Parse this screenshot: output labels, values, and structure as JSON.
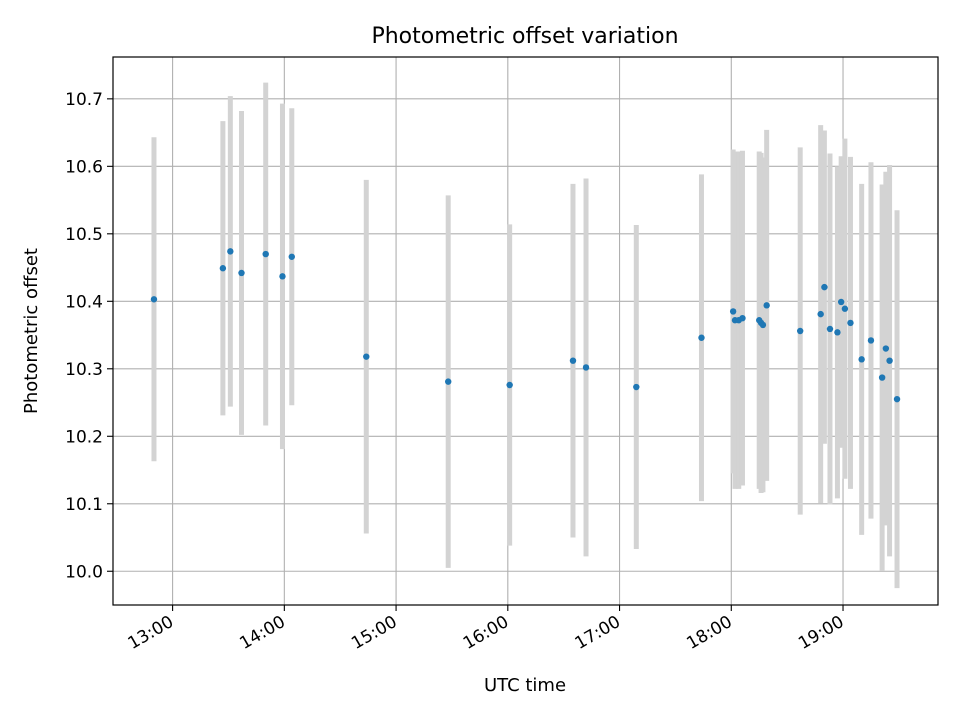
{
  "chart_data": {
    "type": "scatter",
    "title": "Photometric offset variation",
    "xlabel": "UTC time",
    "ylabel": "Photometric offset",
    "xlim": [
      "12:28",
      "19:51"
    ],
    "ylim": [
      9.95,
      10.762
    ],
    "x_ticks": [
      "13:00",
      "14:00",
      "15:00",
      "16:00",
      "17:00",
      "18:00",
      "19:00"
    ],
    "y_ticks": [
      "10.0",
      "10.1",
      "10.2",
      "10.3",
      "10.4",
      "10.5",
      "10.6",
      "10.7"
    ],
    "grid": true,
    "error_bars": "symmetric, light grey",
    "colors": {
      "points": "#1f77b4",
      "error_bars": "#d3d3d3",
      "grid": "#b0b0b0"
    },
    "points": [
      {
        "x": "12:50",
        "y": 10.403,
        "yerr": 0.24
      },
      {
        "x": "13:27",
        "y": 10.449,
        "yerr": 0.218
      },
      {
        "x": "13:31",
        "y": 10.474,
        "yerr": 0.23
      },
      {
        "x": "13:37",
        "y": 10.442,
        "yerr": 0.24
      },
      {
        "x": "13:50",
        "y": 10.47,
        "yerr": 0.254
      },
      {
        "x": "13:59",
        "y": 10.437,
        "yerr": 0.256
      },
      {
        "x": "14:04",
        "y": 10.466,
        "yerr": 0.22
      },
      {
        "x": "14:44",
        "y": 10.318,
        "yerr": 0.262
      },
      {
        "x": "15:28",
        "y": 10.281,
        "yerr": 0.276
      },
      {
        "x": "16:01",
        "y": 10.276,
        "yerr": 0.238
      },
      {
        "x": "16:35",
        "y": 10.312,
        "yerr": 0.262
      },
      {
        "x": "16:42",
        "y": 10.302,
        "yerr": 0.28
      },
      {
        "x": "17:09",
        "y": 10.273,
        "yerr": 0.24
      },
      {
        "x": "17:44",
        "y": 10.346,
        "yerr": 0.242
      },
      {
        "x": "18:01",
        "y": 10.385,
        "yerr": 0.24
      },
      {
        "x": "18:02",
        "y": 10.372,
        "yerr": 0.25
      },
      {
        "x": "18:04",
        "y": 10.372,
        "yerr": 0.25
      },
      {
        "x": "18:06",
        "y": 10.375,
        "yerr": 0.248
      },
      {
        "x": "18:15",
        "y": 10.372,
        "yerr": 0.25
      },
      {
        "x": "18:16",
        "y": 10.368,
        "yerr": 0.252
      },
      {
        "x": "18:17",
        "y": 10.365,
        "yerr": 0.248
      },
      {
        "x": "18:19",
        "y": 10.394,
        "yerr": 0.26
      },
      {
        "x": "18:37",
        "y": 10.356,
        "yerr": 0.272
      },
      {
        "x": "18:48",
        "y": 10.381,
        "yerr": 0.28
      },
      {
        "x": "18:50",
        "y": 10.421,
        "yerr": 0.232
      },
      {
        "x": "18:53",
        "y": 10.359,
        "yerr": 0.26
      },
      {
        "x": "18:57",
        "y": 10.354,
        "yerr": 0.246
      },
      {
        "x": "18:59",
        "y": 10.399,
        "yerr": 0.216
      },
      {
        "x": "19:01",
        "y": 10.389,
        "yerr": 0.252
      },
      {
        "x": "19:04",
        "y": 10.368,
        "yerr": 0.246
      },
      {
        "x": "19:10",
        "y": 10.314,
        "yerr": 0.26
      },
      {
        "x": "19:15",
        "y": 10.342,
        "yerr": 0.264
      },
      {
        "x": "19:21",
        "y": 10.287,
        "yerr": 0.286
      },
      {
        "x": "19:23",
        "y": 10.33,
        "yerr": 0.262
      },
      {
        "x": "19:25",
        "y": 10.312,
        "yerr": 0.29
      },
      {
        "x": "19:29",
        "y": 10.255,
        "yerr": 0.28
      }
    ]
  }
}
